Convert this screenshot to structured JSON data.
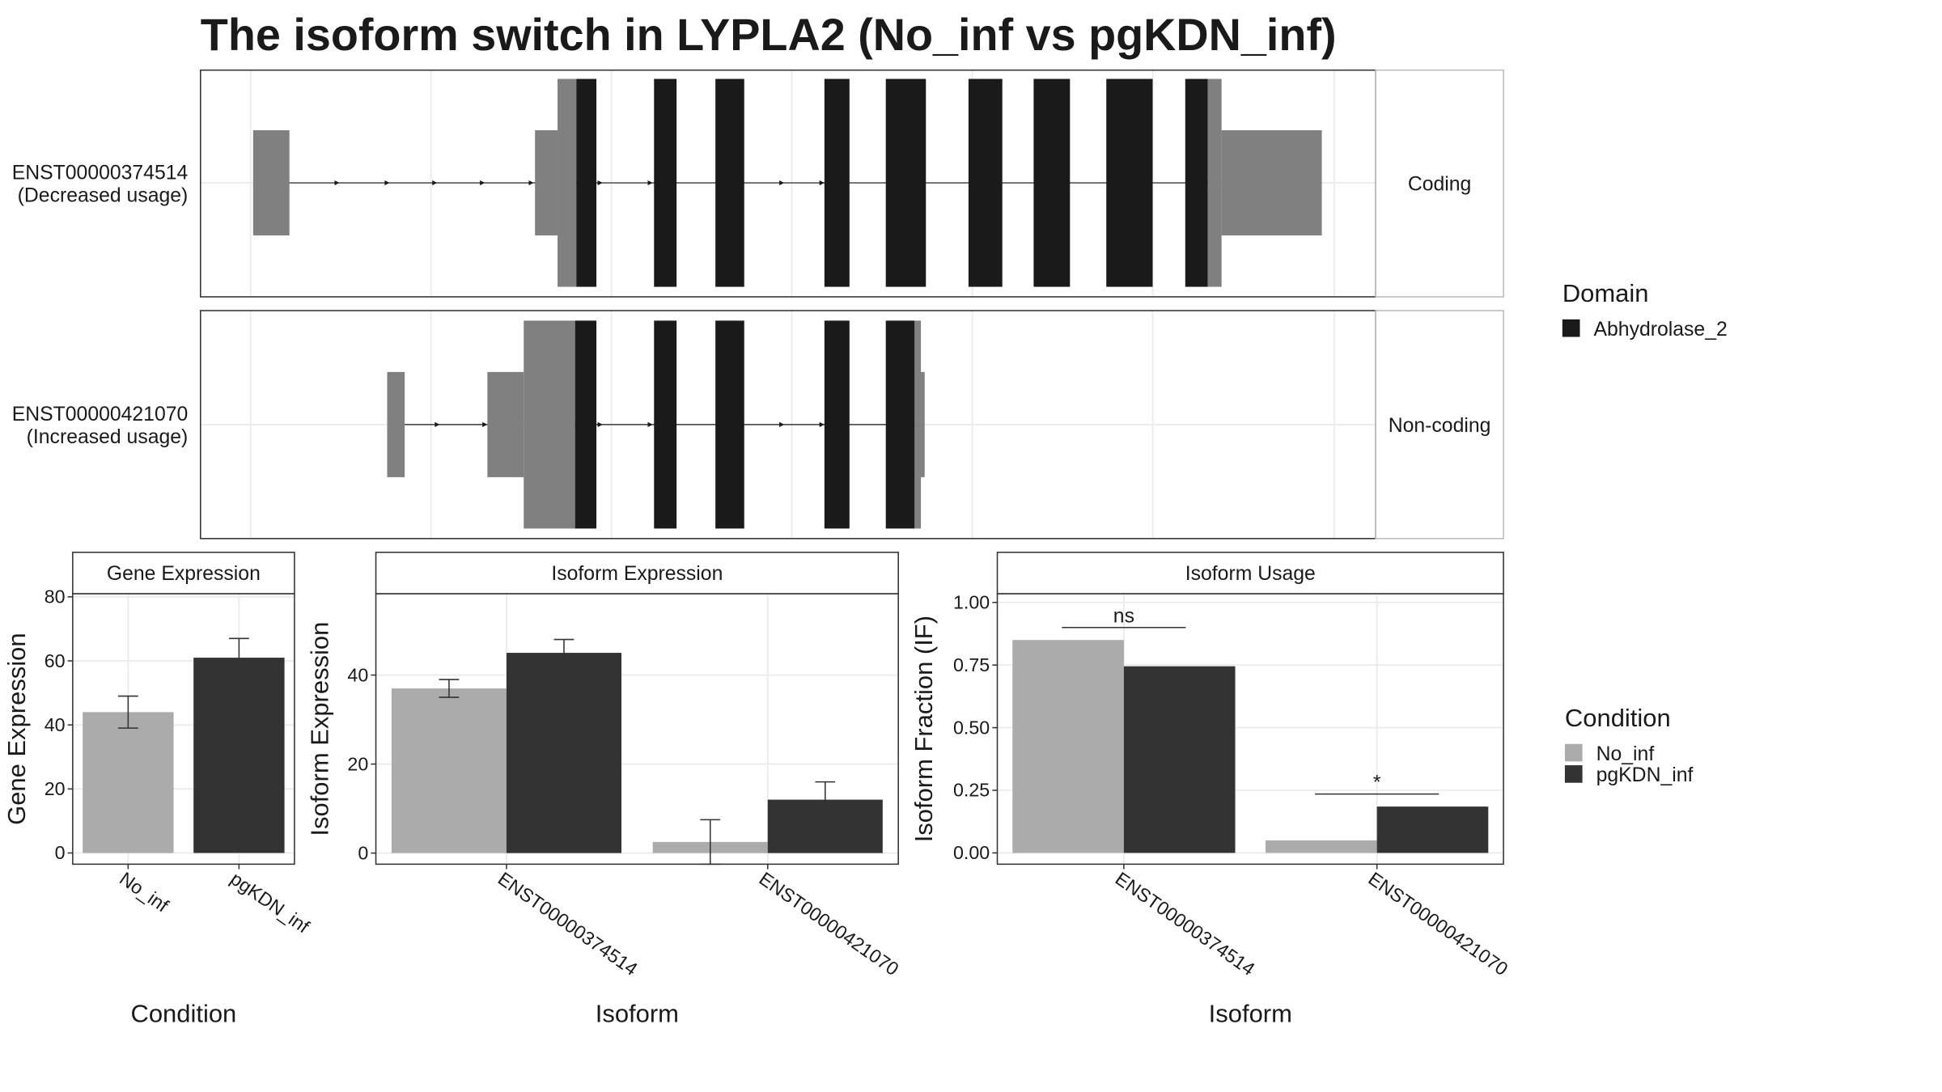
{
  "chart_data": [
    {
      "type": "transcript",
      "title": "The isoform switch in LYPLA2 (No_inf vs pgKDN_inf)",
      "transcripts": [
        {
          "name": "ENST00000374514",
          "usage": "(Decreased usage)",
          "facet": "Coding"
        },
        {
          "name": "ENST00000421070",
          "usage": "(Increased usage)",
          "facet": "Non-coding"
        }
      ],
      "legend_title": "Domain",
      "domains": [
        {
          "name": "Abhydrolase_2",
          "color": "#1a1a1a"
        }
      ],
      "utr_color": "#808080"
    },
    {
      "type": "bar",
      "title": "Gene Expression",
      "categories": [
        "No_inf",
        "pgKDN_inf"
      ],
      "values": [
        44,
        61
      ],
      "errors": [
        5,
        6
      ],
      "colors": [
        "#ababab",
        "#333333"
      ],
      "ylabel": "Gene Expression",
      "xlabel": "Condition",
      "ylim": [
        -3.5,
        81
      ],
      "yticks": [
        0,
        20,
        40,
        60,
        80
      ],
      "grid": true
    },
    {
      "type": "grouped_bar",
      "title": "Isoform Expression",
      "categories": [
        "ENST00000374514",
        "ENST00000421070"
      ],
      "series": [
        {
          "name": "No_inf",
          "color": "#ababab",
          "values": [
            37,
            2.5
          ],
          "errors": [
            2,
            5
          ]
        },
        {
          "name": "pgKDN_inf",
          "color": "#333333",
          "values": [
            45,
            12
          ],
          "errors": [
            3,
            4
          ]
        }
      ],
      "ylabel": "Isoform Expression",
      "xlabel": "Isoform",
      "ylim": [
        -2.5,
        58.3
      ],
      "yticks": [
        0,
        20,
        40
      ],
      "grid": true
    },
    {
      "type": "grouped_bar",
      "title": "Isoform Usage",
      "categories": [
        "ENST00000374514",
        "ENST00000421070"
      ],
      "series": [
        {
          "name": "No_inf",
          "color": "#ababab",
          "values": [
            0.85,
            0.05
          ]
        },
        {
          "name": "pgKDN_inf",
          "color": "#333333",
          "values": [
            0.745,
            0.185
          ]
        }
      ],
      "ylabel": "Isoform Fraction (IF)",
      "xlabel": "Isoform",
      "ylim": [
        -0.045,
        1.035
      ],
      "yticks": [
        {
          "value": 0,
          "label": "0.00"
        },
        {
          "value": 0.25,
          "label": "0.25"
        },
        {
          "value": 0.5,
          "label": "0.50"
        },
        {
          "value": 0.75,
          "label": "0.75"
        },
        {
          "value": 1,
          "label": "1.00"
        }
      ],
      "annotations": [
        {
          "text": "ns",
          "y": 0.9
        },
        {
          "text": "*",
          "y": 0.235
        }
      ],
      "legend_title": "Condition",
      "grid": true
    }
  ]
}
